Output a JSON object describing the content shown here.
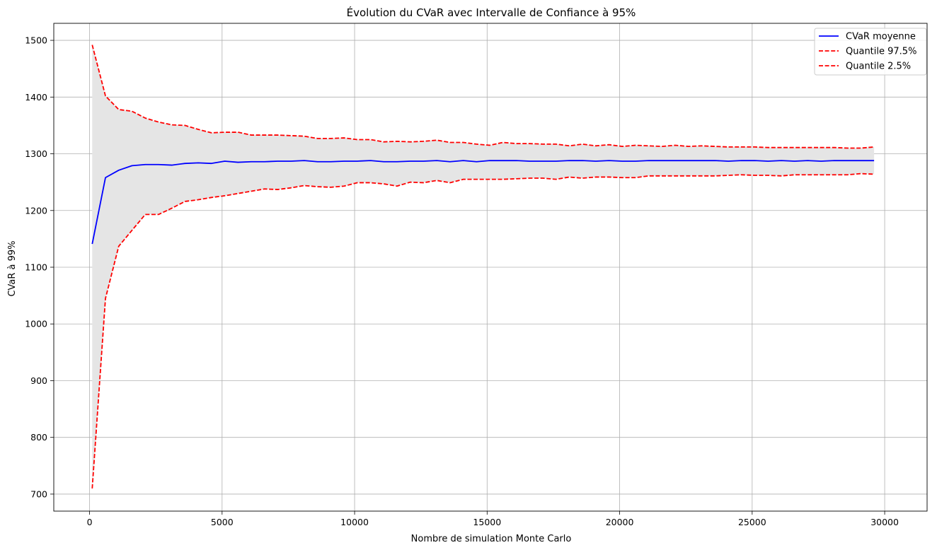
{
  "chart_data": {
    "type": "line",
    "title": "Évolution du CVaR avec Intervalle de Confiance à 95%",
    "xlabel": "Nombre de simulation Monte Carlo",
    "ylabel": "CVaR à 99%",
    "xlim": [
      -1350,
      31600
    ],
    "ylim": [
      670,
      1530
    ],
    "xticks": [
      0,
      5000,
      10000,
      15000,
      20000,
      25000,
      30000
    ],
    "yticks": [
      700,
      800,
      900,
      1000,
      1100,
      1200,
      1300,
      1400,
      1500
    ],
    "grid": true,
    "legend_position": "top-right",
    "band_color": "#e5e5e5",
    "x": [
      100,
      600,
      1100,
      1600,
      2100,
      2600,
      3100,
      3600,
      4100,
      4600,
      5100,
      5600,
      6100,
      6600,
      7100,
      7600,
      8100,
      8600,
      9100,
      9600,
      10100,
      10600,
      11100,
      11600,
      12100,
      12600,
      13100,
      13600,
      14100,
      14600,
      15100,
      15600,
      16100,
      16600,
      17100,
      17600,
      18100,
      18600,
      19100,
      19600,
      20100,
      20600,
      21100,
      21600,
      22100,
      22600,
      23100,
      23600,
      24100,
      24600,
      25100,
      25600,
      26100,
      26600,
      27100,
      27600,
      28100,
      28600,
      29100,
      29600
    ],
    "series": [
      {
        "name": "CVaR moyenne",
        "color": "#0000ff",
        "style": "solid",
        "values": [
          1141,
          1258,
          1271,
          1279,
          1281,
          1281,
          1280,
          1283,
          1284,
          1283,
          1287,
          1285,
          1286,
          1286,
          1287,
          1287,
          1288,
          1286,
          1286,
          1287,
          1287,
          1288,
          1286,
          1286,
          1287,
          1287,
          1288,
          1286,
          1288,
          1286,
          1288,
          1288,
          1288,
          1287,
          1287,
          1287,
          1288,
          1288,
          1287,
          1288,
          1287,
          1287,
          1288,
          1288,
          1288,
          1288,
          1288,
          1288,
          1287,
          1288,
          1288,
          1287,
          1288,
          1287,
          1288,
          1287,
          1288,
          1288,
          1288,
          1288
        ]
      },
      {
        "name": "Quantile 97.5%",
        "color": "#ff0000",
        "style": "dashed",
        "values": [
          1492,
          1402,
          1378,
          1375,
          1363,
          1356,
          1351,
          1350,
          1343,
          1337,
          1338,
          1338,
          1333,
          1333,
          1333,
          1332,
          1331,
          1327,
          1327,
          1328,
          1325,
          1325,
          1321,
          1322,
          1321,
          1322,
          1324,
          1320,
          1320,
          1317,
          1315,
          1320,
          1318,
          1318,
          1317,
          1317,
          1314,
          1317,
          1314,
          1316,
          1313,
          1315,
          1314,
          1313,
          1315,
          1313,
          1314,
          1313,
          1312,
          1312,
          1312,
          1311,
          1311,
          1311,
          1311,
          1311,
          1311,
          1310,
          1310,
          1312
        ]
      },
      {
        "name": "Quantile 2.5%",
        "color": "#ff0000",
        "style": "dashed",
        "values": [
          710,
          1045,
          1137,
          1165,
          1193,
          1193,
          1204,
          1216,
          1219,
          1223,
          1226,
          1230,
          1234,
          1238,
          1237,
          1240,
          1244,
          1242,
          1241,
          1243,
          1249,
          1249,
          1247,
          1243,
          1250,
          1249,
          1253,
          1249,
          1255,
          1255,
          1255,
          1255,
          1256,
          1257,
          1257,
          1255,
          1259,
          1257,
          1259,
          1259,
          1258,
          1258,
          1261,
          1261,
          1261,
          1261,
          1261,
          1261,
          1262,
          1263,
          1262,
          1262,
          1261,
          1263,
          1263,
          1263,
          1263,
          1263,
          1265,
          1264
        ]
      }
    ]
  }
}
